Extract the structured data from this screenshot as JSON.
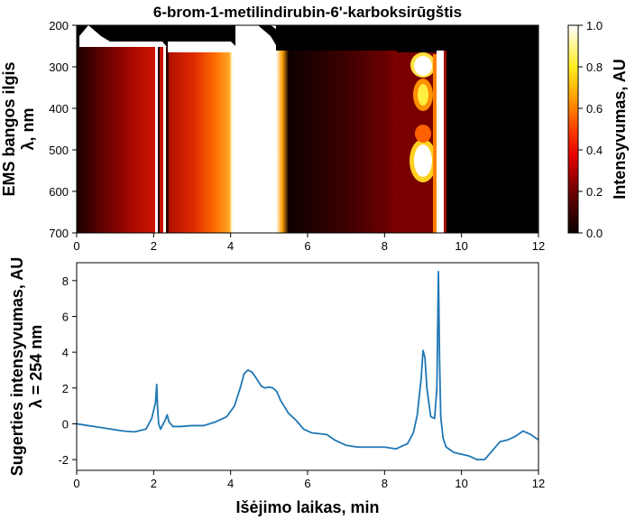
{
  "chart_data": [
    {
      "type": "heatmap",
      "title": "6-brom-1-metilindirubin-6'-karboksirūgštis",
      "ylabel_lines": [
        "EMS bangos ilgis",
        "λ, nm"
      ],
      "xlim": [
        0,
        12
      ],
      "ylim": [
        200,
        700
      ],
      "y_inverted": true,
      "x_ticks": [
        0,
        2,
        4,
        6,
        8,
        10,
        12
      ],
      "y_ticks": [
        200,
        300,
        400,
        500,
        600,
        700
      ],
      "colormap": "hot",
      "colorbar": {
        "label": "Intensyvumas, AU",
        "range": [
          0.0,
          1.0
        ],
        "ticks": [
          "0.0",
          "0.2",
          "0.4",
          "0.6",
          "0.8",
          "1.0"
        ]
      }
    },
    {
      "type": "line",
      "xlabel": "Išėjimo laikas, min",
      "ylabel_lines": [
        "Sugerties intensyvumas, AU",
        "λ = 254 nm"
      ],
      "xlim": [
        0,
        12
      ],
      "ylim": [
        -2.6,
        9
      ],
      "x_ticks": [
        0,
        2,
        4,
        6,
        8,
        10,
        12
      ],
      "y_ticks": [
        -2,
        0,
        2,
        4,
        6,
        8
      ],
      "line_color": "#1f77b4",
      "series": [
        {
          "x": [
            0,
            0.3,
            0.6,
            0.9,
            1.2,
            1.5,
            1.8,
            1.95,
            2.05,
            2.08,
            2.1,
            2.13,
            2.18,
            2.25,
            2.3,
            2.35,
            2.4,
            2.5,
            2.7,
            3.0,
            3.3,
            3.6,
            3.9,
            4.1,
            4.25,
            4.35,
            4.45,
            4.55,
            4.65,
            4.8,
            4.9,
            5.0,
            5.1,
            5.2,
            5.3,
            5.5,
            5.7,
            5.9,
            6.1,
            6.3,
            6.5,
            6.7,
            7.0,
            7.3,
            7.6,
            8.0,
            8.3,
            8.6,
            8.75,
            8.85,
            8.95,
            9.0,
            9.05,
            9.1,
            9.2,
            9.3,
            9.36,
            9.4,
            9.43,
            9.46,
            9.52,
            9.6,
            9.8,
            10.0,
            10.2,
            10.4,
            10.6,
            10.8,
            11.0,
            11.2,
            11.4,
            11.6,
            11.8,
            12.0
          ],
          "y": [
            0.0,
            -0.1,
            -0.2,
            -0.3,
            -0.4,
            -0.45,
            -0.3,
            0.3,
            1.2,
            2.2,
            1.0,
            0.0,
            -0.3,
            0.0,
            0.2,
            0.5,
            0.1,
            -0.15,
            -0.15,
            -0.1,
            -0.1,
            0.1,
            0.4,
            1.0,
            2.0,
            2.8,
            3.0,
            2.9,
            2.6,
            2.1,
            2.0,
            2.05,
            2.0,
            1.8,
            1.3,
            0.6,
            0.2,
            -0.3,
            -0.5,
            -0.55,
            -0.6,
            -0.9,
            -1.2,
            -1.3,
            -1.3,
            -1.3,
            -1.4,
            -1.1,
            -0.5,
            0.5,
            2.5,
            4.1,
            3.7,
            2.0,
            0.4,
            0.3,
            2.0,
            8.5,
            3.5,
            0.4,
            -0.8,
            -1.3,
            -1.6,
            -1.7,
            -1.8,
            -2.0,
            -2.0,
            -1.5,
            -1.0,
            -0.9,
            -0.7,
            -0.4,
            -0.6,
            -0.9
          ]
        }
      ]
    }
  ]
}
